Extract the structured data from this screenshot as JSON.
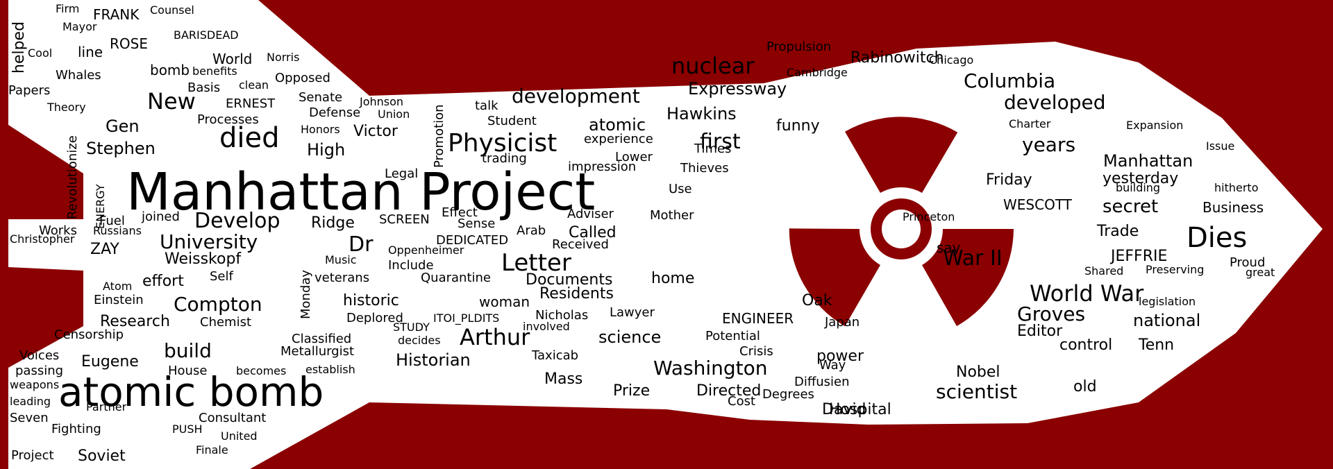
{
  "image": {
    "description_words": [
      {
        "t": "Manhattan Project",
        "c": "#f5a00f"
      },
      {
        "t": "atomic bomb",
        "c": "#57106e"
      },
      {
        "t": "died",
        "c": "#57106e"
      },
      {
        "t": "Develop",
        "c": "#f5a00f"
      },
      {
        "t": "Physicist",
        "c": "#f5a00f"
      },
      {
        "t": "nuclear",
        "c": "#e35932"
      },
      {
        "t": "Dies",
        "c": "#f5a00f"
      },
      {
        "t": "World War",
        "c": "#000004"
      },
      {
        "t": "Letter",
        "c": "#a52c60"
      },
      {
        "t": "Washington",
        "c": "#f5a00f"
      },
      {
        "t": "Arthur",
        "c": "#a52c60"
      },
      {
        "t": "development",
        "c": "#57106e"
      },
      {
        "t": "scientist",
        "c": "#57106e"
      },
      {
        "t": "Groves",
        "c": "#f5a00f"
      },
      {
        "t": "Columbia",
        "c": "#57106e"
      },
      {
        "t": "developed",
        "c": "#57106e"
      },
      {
        "t": "War II",
        "c": "#f98e09"
      },
      {
        "t": "New",
        "c": "#f5a00f"
      },
      {
        "t": "build",
        "c": "#f98e09"
      },
      {
        "t": "first",
        "c": "#fac127"
      },
      {
        "t": "University",
        "c": "#f6d746"
      },
      {
        "t": "Compton",
        "c": "#f6d746"
      },
      {
        "t": "Expressway",
        "c": "#e35932"
      },
      {
        "t": "Rabinowitch",
        "c": "#000004"
      },
      {
        "t": "Hawkins",
        "c": "#e35932"
      },
      {
        "t": "atomic",
        "c": "#f5a00f"
      },
      {
        "t": "years",
        "c": "#fac127"
      },
      {
        "t": "secret",
        "c": "#fac127"
      },
      {
        "t": "Manhattan",
        "c": "#57106e"
      },
      {
        "t": "yesterday",
        "c": "#000004"
      },
      {
        "t": "Stephen",
        "c": "#a52c60"
      },
      {
        "t": "Gen",
        "c": "#f6d746"
      },
      {
        "t": "High",
        "c": "#000004"
      },
      {
        "t": "Victor",
        "c": "#f6d746"
      },
      {
        "t": "Weisskopf",
        "c": "#a52c60"
      },
      {
        "t": "Research",
        "c": "#57106e"
      },
      {
        "t": "historic",
        "c": "#f98e09"
      },
      {
        "t": "woman",
        "c": "#57106e"
      },
      {
        "t": "Documents",
        "c": "#57106e"
      },
      {
        "t": "Residents",
        "c": "#f98e09"
      },
      {
        "t": "home",
        "c": "#57106e"
      },
      {
        "t": "Called",
        "c": "#57106e"
      },
      {
        "t": "Historian",
        "c": "#f98e09"
      },
      {
        "t": "Eugene",
        "c": "#f98e09"
      },
      {
        "t": "science",
        "c": "#000004"
      },
      {
        "t": "Prize",
        "c": "#000004"
      },
      {
        "t": "Directed",
        "c": "#fac127"
      },
      {
        "t": "Hospital",
        "c": "#fac127"
      },
      {
        "t": "David",
        "c": "#fac127"
      },
      {
        "t": "Nobel",
        "c": "#57106e"
      },
      {
        "t": "old",
        "c": "#57106e"
      },
      {
        "t": "national",
        "c": "#57106e"
      },
      {
        "t": "control",
        "c": "#57106e"
      },
      {
        "t": "Tenn",
        "c": "#f98e09"
      },
      {
        "t": "Editor",
        "c": "#f98e09"
      },
      {
        "t": "JEFFRIE",
        "c": "#a52c60"
      },
      {
        "t": "Trade",
        "c": "#a52c60"
      },
      {
        "t": "WESCOTT",
        "c": "#57106e"
      },
      {
        "t": "Friday",
        "c": "#57106e"
      },
      {
        "t": "Oak",
        "c": "#f98e09"
      },
      {
        "t": "power",
        "c": "#57106e"
      },
      {
        "t": "ENGINEER",
        "c": "#fac127"
      },
      {
        "t": "Mass",
        "c": "#a52c60"
      },
      {
        "t": "Ridge",
        "c": "#f98e09"
      },
      {
        "t": "Dr",
        "c": "#f98e09"
      },
      {
        "t": "effort",
        "c": "#f98e09"
      },
      {
        "t": "ZAY",
        "c": "#a52c60"
      },
      {
        "t": "funny",
        "c": "#57106e"
      },
      {
        "t": "Propulsion",
        "c": "#f98e09"
      },
      {
        "t": "Chicago",
        "c": "#000004"
      },
      {
        "t": "Cambridge",
        "c": "#a52c60"
      },
      {
        "t": "Princeton",
        "c": "#57106e"
      },
      {
        "t": "say",
        "c": "#000004"
      },
      {
        "t": "Shared",
        "c": "#f98e09"
      },
      {
        "t": "Preserving",
        "c": "#f6d746"
      },
      {
        "t": "Business",
        "c": "#fcffa4"
      },
      {
        "t": "Expansion",
        "c": "#a52c60"
      },
      {
        "t": "building",
        "c": "#a52c60"
      },
      {
        "t": "hitherto",
        "c": "#a52c60"
      },
      {
        "t": "Charter",
        "c": "#57106e"
      },
      {
        "t": "Issue",
        "c": "#a52c60"
      },
      {
        "t": "legislation",
        "c": "#57106e"
      },
      {
        "t": "Proud",
        "c": "#a52c60"
      },
      {
        "t": "great",
        "c": "#fac127"
      },
      {
        "t": "Potential",
        "c": "#000004"
      },
      {
        "t": "Crisis",
        "c": "#f6d746"
      },
      {
        "t": "Diffusien",
        "c": "#f98e09"
      },
      {
        "t": "Cost",
        "c": "#fac127"
      },
      {
        "t": "Degrees",
        "c": "#f98e09"
      },
      {
        "t": "Way",
        "c": "#57106e"
      },
      {
        "t": "Japan",
        "c": "#f98e09"
      },
      {
        "t": "Taxicab",
        "c": "#a52c60"
      },
      {
        "t": "Lawyer",
        "c": "#f98e09"
      },
      {
        "t": "involved",
        "c": "#000004"
      },
      {
        "t": "Nicholas",
        "c": "#f98e09"
      },
      {
        "t": "Quarantine",
        "c": "#f98e09"
      },
      {
        "t": "Include",
        "c": "#fac127"
      },
      {
        "t": "Received",
        "c": "#a52c60"
      },
      {
        "t": "Adviser",
        "c": "#f98e09"
      },
      {
        "t": "Mother",
        "c": "#000004"
      },
      {
        "t": "Use",
        "c": "#a52c60"
      },
      {
        "t": "Thieves",
        "c": "#fac127"
      },
      {
        "t": "Times",
        "c": "#fac127"
      },
      {
        "t": "experience",
        "c": "#a52c60"
      },
      {
        "t": "Lower",
        "c": "#fac127"
      },
      {
        "t": "Student",
        "c": "#f98e09"
      },
      {
        "t": "talk",
        "c": "#f98e09"
      },
      {
        "t": "trading",
        "c": "#f98e09"
      },
      {
        "t": "impression",
        "c": "#fac127"
      },
      {
        "t": "Effect",
        "c": "#f98e09"
      },
      {
        "t": "Sense",
        "c": "#f6d746"
      },
      {
        "t": "Arab",
        "c": "#f98e09"
      },
      {
        "t": "DEDICATED",
        "c": "#f98e09"
      },
      {
        "t": "SCREEN",
        "c": "#000004"
      },
      {
        "t": "joined",
        "c": "#57106e"
      },
      {
        "t": "Fuel",
        "c": "#000004"
      },
      {
        "t": "Works",
        "c": "#f98e09"
      },
      {
        "t": "Russians",
        "c": "#f6d746"
      },
      {
        "t": "Christopher",
        "c": "#fac127"
      },
      {
        "t": "Revolutionize",
        "c": "#f98e09"
      },
      {
        "t": "ENERGY",
        "c": "#57106e"
      },
      {
        "t": "Einstein",
        "c": "#a52c60"
      },
      {
        "t": "Chemist",
        "c": "#f6d746"
      },
      {
        "t": "Censorship",
        "c": "#fcffa4"
      },
      {
        "t": "Voices",
        "c": "#000004"
      },
      {
        "t": "passing",
        "c": "#f98e09"
      },
      {
        "t": "weapons",
        "c": "#000004"
      },
      {
        "t": "leading",
        "c": "#000004"
      },
      {
        "t": "Seven",
        "c": "#f6d746"
      },
      {
        "t": "Fighting",
        "c": "#57106e"
      },
      {
        "t": "Partner",
        "c": "#a52c60"
      },
      {
        "t": "Project",
        "c": "#57106e"
      },
      {
        "t": "Soviet",
        "c": "#f6d746"
      },
      {
        "t": "Consultant",
        "c": "#fac127"
      },
      {
        "t": "United",
        "c": "#57106e"
      },
      {
        "t": "Finale",
        "c": "#000004"
      },
      {
        "t": "PUSH",
        "c": "#fac127"
      },
      {
        "t": "House",
        "c": "#a52c60"
      },
      {
        "t": "becomes",
        "c": "#a52c60"
      },
      {
        "t": "establish",
        "c": "#a52c60"
      },
      {
        "t": "Metallurgist",
        "c": "#f98e09"
      },
      {
        "t": "Classified",
        "c": "#fcffa4"
      },
      {
        "t": "Deplored",
        "c": "#a52c60"
      },
      {
        "t": "STUDY",
        "c": "#57106e"
      },
      {
        "t": "decides",
        "c": "#f6d746"
      },
      {
        "t": "ITOI_PLDITS",
        "c": "#000004"
      },
      {
        "t": "Oppenheimer",
        "c": "#57106e"
      },
      {
        "t": "Music",
        "c": "#000004"
      },
      {
        "t": "veterans",
        "c": "#f98e09"
      },
      {
        "t": "Monday",
        "c": "#57106e"
      },
      {
        "t": "Self",
        "c": "#a52c60"
      },
      {
        "t": "Atom",
        "c": "#fcffa4"
      },
      {
        "t": "Legal",
        "c": "#f98e09"
      },
      {
        "t": "Promotion",
        "c": "#f98e09"
      },
      {
        "t": "Johnson",
        "c": "#000004"
      },
      {
        "t": "Union",
        "c": "#000004"
      },
      {
        "t": "Defense",
        "c": "#57106e"
      },
      {
        "t": "Senate",
        "c": "#f98e09"
      },
      {
        "t": "Honors",
        "c": "#a52c60"
      },
      {
        "t": "Opposed",
        "c": "#f98e09"
      },
      {
        "t": "Processes",
        "c": "#fcffa4"
      },
      {
        "t": "ERNEST",
        "c": "#fac127"
      },
      {
        "t": "Basis",
        "c": "#fac127"
      },
      {
        "t": "clean",
        "c": "#f98e09"
      },
      {
        "t": "World",
        "c": "#57106e"
      },
      {
        "t": "Norris",
        "c": "#a52c60"
      },
      {
        "t": "ROSE",
        "c": "#57106e"
      },
      {
        "t": "bomb",
        "c": "#57106e"
      },
      {
        "t": "benefits",
        "c": "#e35932"
      },
      {
        "t": "BARISDEAD",
        "c": "#000004"
      },
      {
        "t": "line",
        "c": "#a52c60"
      },
      {
        "t": "Whales",
        "c": "#f98e09"
      },
      {
        "t": "Papers",
        "c": "#fac127"
      },
      {
        "t": "helped",
        "c": "#f98e09"
      },
      {
        "t": "FRANK",
        "c": "#f6d746"
      },
      {
        "t": "Mayor",
        "c": "#f98e09"
      },
      {
        "t": "Firm",
        "c": "#fac127"
      },
      {
        "t": "Counsel",
        "c": "#fac127"
      },
      {
        "t": "Theory",
        "c": "#000004"
      },
      {
        "t": "Cool",
        "c": "#a52c60"
      }
    ]
  }
}
